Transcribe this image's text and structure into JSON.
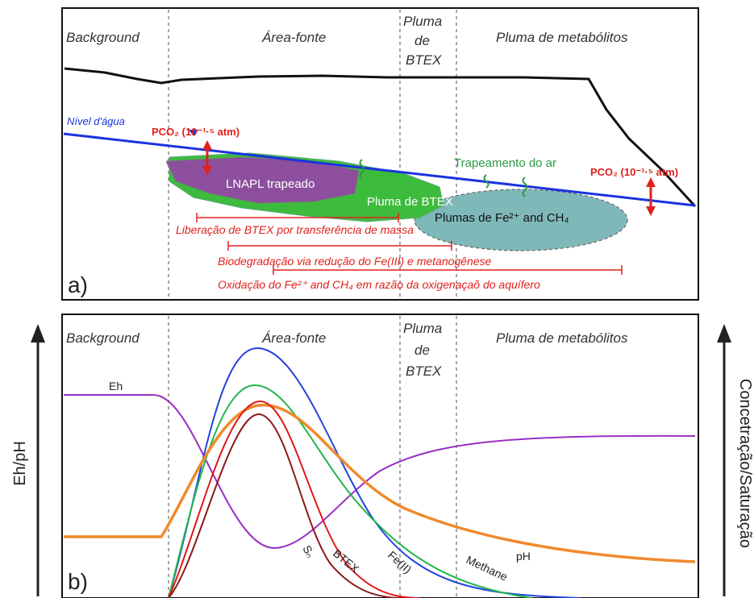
{
  "panel_a": {
    "label": "a)",
    "zones": [
      "Background",
      "Área-fonte",
      "Pluma",
      "de",
      "BTEX",
      "Pluma de metabólitos"
    ],
    "water_level": "Nível d'água",
    "pco2_left": "PCO₂ (10⁻¹·⁵ atm)",
    "pco2_right": "PCO₂ (10⁻¹·⁵ atm)",
    "lnapl": "LNAPL trapeado",
    "btex_plume": "Pluma de BTEX",
    "fe_plume": "Plumas de Fe²⁺ and CH₄",
    "air_trap": "Trapeamento do ar",
    "process_1": "Liberação de BTEX por transferência de massa",
    "process_2": "Biodegradação via  redução do Fe(III) e metanogênese",
    "process_3": "Oxidação do Fe²⁺ and CH₄ em razão da oxigenaçaõ do aquífero"
  },
  "panel_b": {
    "label": "b)",
    "zones": [
      "Background",
      "Área-fonte",
      "Pluma",
      "de",
      "BTEX",
      "Pluma de metabólitos"
    ],
    "left_axis": "Eh/pH",
    "right_axis": "Concetração/Saturação",
    "curves": {
      "eh": "Eh",
      "ph": "pH",
      "sn": "Sₙ",
      "btex": "BTEX",
      "fe": "Fe(II)",
      "methane": "Methane"
    },
    "colors": {
      "eh": "#9b2fc4",
      "ph": "#f08a2c",
      "sn": "#8b1a1a",
      "btex": "#e01818",
      "fe": "#2244dd",
      "methane": "#22b54a"
    }
  }
}
